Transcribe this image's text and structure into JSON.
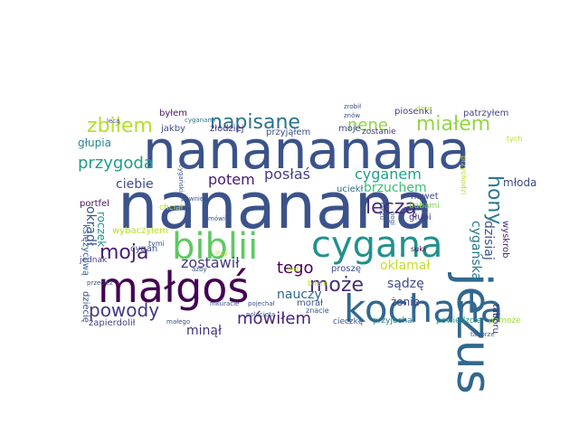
{
  "words": [
    {
      "text": "nanananana",
      "color": "#3b528b"
    },
    {
      "text": "nananana",
      "color": "#3b528b"
    },
    {
      "text": "małgoś",
      "color": "#440154"
    },
    {
      "text": "kochana",
      "color": "#31688e"
    },
    {
      "text": "jezus",
      "color": "#31688e"
    },
    {
      "text": "biblii",
      "color": "#5ec962"
    },
    {
      "text": "cygana",
      "color": "#21918c"
    },
    {
      "text": "zbiłem",
      "color": "#b5de2b"
    },
    {
      "text": "napisane",
      "color": "#2c728e"
    },
    {
      "text": "nene",
      "color": "#8fd744"
    },
    {
      "text": "miałem",
      "color": "#90d743"
    },
    {
      "text": "głupia",
      "color": "#26828e"
    },
    {
      "text": "przygoda",
      "color": "#1f9e89"
    },
    {
      "text": "cyganem",
      "color": "#1fa188"
    },
    {
      "text": "posłaś",
      "color": "#433e85"
    },
    {
      "text": "potem",
      "color": "#481b6d"
    },
    {
      "text": "ciebie",
      "color": "#3e4989"
    },
    {
      "text": "brzuchem",
      "color": "#3fbc73"
    },
    {
      "text": "leczą",
      "color": "#472d7b"
    },
    {
      "text": "hony",
      "color": "#2a788e"
    },
    {
      "text": "moja",
      "color": "#481f70"
    },
    {
      "text": "okradł",
      "color": "#3b528b"
    },
    {
      "text": "roczek",
      "color": "#21918c"
    },
    {
      "text": "może",
      "color": "#472c7a"
    },
    {
      "text": "tego",
      "color": "#440154"
    },
    {
      "text": "zostawił",
      "color": "#443983"
    },
    {
      "text": "cygańska",
      "color": "#2a788e"
    },
    {
      "text": "oklamał",
      "color": "#c2df23"
    },
    {
      "text": "dzisiaj",
      "color": "#3b528b"
    },
    {
      "text": "powody",
      "color": "#443a83"
    },
    {
      "text": "nauczy",
      "color": "#31688e"
    },
    {
      "text": "sądzę",
      "color": "#3e4989"
    },
    {
      "text": "żonie",
      "color": "#3e4989"
    },
    {
      "text": "mówiłem",
      "color": "#482475"
    },
    {
      "text": "minął",
      "color": "#472d7b"
    },
    {
      "text": "zapierdolił",
      "color": "#404688"
    },
    {
      "text": "młoda",
      "color": "#3e4a89"
    },
    {
      "text": "wyskrob",
      "color": "#482878"
    },
    {
      "text": "wybaczyłem",
      "color": "#b8de29"
    },
    {
      "text": "byłem",
      "color": "#481668"
    },
    {
      "text": "piosenki",
      "color": "#433e85"
    },
    {
      "text": "patrzyłem",
      "color": "#414487"
    },
    {
      "text": "jakby",
      "color": "#3e4a89"
    },
    {
      "text": "złodziej",
      "color": "#46307e"
    },
    {
      "text": "przyjąłem",
      "color": "#3b528b"
    },
    {
      "text": "moje",
      "color": "#3e4989"
    },
    {
      "text": "zostanie",
      "color": "#453781"
    },
    {
      "text": "portfel",
      "color": "#471365"
    },
    {
      "text": "uciekł",
      "color": "#31688e"
    },
    {
      "text": "nawet",
      "color": "#3e4989"
    },
    {
      "text": "głupi",
      "color": "#443983"
    },
    {
      "text": "suki",
      "color": "#440154"
    },
    {
      "text": "cygan",
      "color": "#3b528b"
    },
    {
      "text": "jednak",
      "color": "#433e85"
    },
    {
      "text": "dziecię",
      "color": "#3b528b"
    },
    {
      "text": "proszę",
      "color": "#3e4989"
    },
    {
      "text": "morał",
      "color": "#3b528b"
    },
    {
      "text": "cieczkę",
      "color": "#3b528b"
    },
    {
      "text": "przyjechał",
      "color": "#2a788e"
    },
    {
      "text": "powiedzcie",
      "color": "#21918c"
    },
    {
      "text": "pomoże",
      "color": "#a0da39"
    },
    {
      "text": "taboru",
      "color": "#472c7a"
    },
    {
      "text": "księżycową",
      "color": "#31688e"
    },
    {
      "text": "babami",
      "color": "#7fd34e"
    },
    {
      "text": "chciał",
      "color": "#b5de2b"
    },
    {
      "text": "tymi",
      "color": "#3b528b"
    },
    {
      "text": "znacie",
      "color": "#3b528b"
    },
    {
      "text": "bilem",
      "color": "#b5de2b"
    },
    {
      "text": "jest",
      "color": "#b5de2b"
    },
    {
      "text": "mówił",
      "color": "#3b528b"
    },
    {
      "text": "cyganami",
      "color": "#2a788e"
    },
    {
      "text": "znów",
      "color": "#3b528b"
    },
    {
      "text": "zrobił",
      "color": "#3b528b"
    },
    {
      "text": "lecą",
      "color": "#3b528b"
    },
    {
      "text": "małego",
      "color": "#3b528b"
    },
    {
      "text": "mkuracie",
      "color": "#3b528b"
    },
    {
      "text": "pojechał",
      "color": "#3b528b"
    },
    {
      "text": "polecieta",
      "color": "#3b528b"
    },
    {
      "text": "taborze",
      "color": "#3b528b"
    },
    {
      "text": "przeciez",
      "color": "#3b528b"
    },
    {
      "text": "pownie",
      "color": "#3b528b"
    },
    {
      "text": "cygańskie",
      "color": "#3b528b"
    },
    {
      "text": "ażby",
      "color": "#3b528b"
    },
    {
      "text": "ilicy",
      "color": "#b5de2b"
    },
    {
      "text": "dziur",
      "color": "#b5de2b"
    },
    {
      "text": "przychodzi",
      "color": "#b5de2b"
    },
    {
      "text": "tych",
      "color": "#b5de2b"
    },
    {
      "text": "łańcu",
      "color": "#3b528b"
    },
    {
      "text": "nogi",
      "color": "#3b528b"
    }
  ]
}
